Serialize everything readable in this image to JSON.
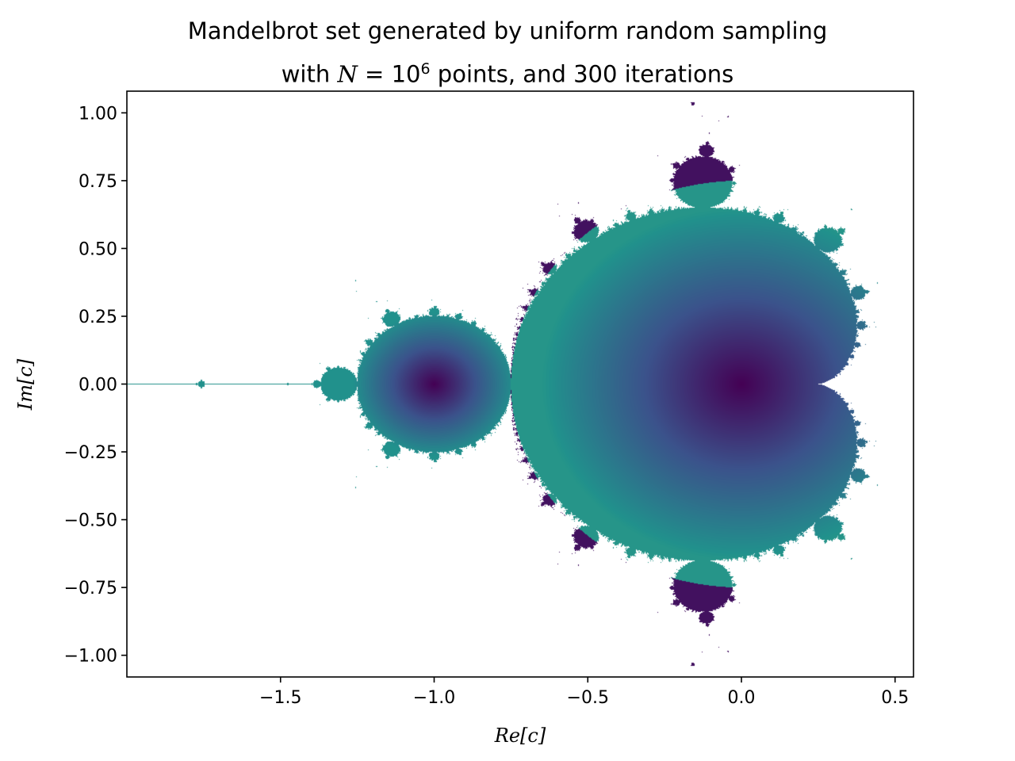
{
  "chart_data": {
    "type": "scatter",
    "title_line1": "Mandelbrot set generated by uniform random sampling",
    "title_line2_prefix": "with ",
    "title_line2_var": "N",
    "title_line2_eq": " = 10",
    "title_line2_exp": "6",
    "title_line2_suffix": " points, and 300 iterations",
    "xlabel": "Re[c]",
    "ylabel": "Im[c]",
    "xlim": [
      -2.0,
      0.56
    ],
    "ylim": [
      -1.08,
      1.08
    ],
    "xticks": [
      -1.5,
      -1.0,
      -0.5,
      0.0,
      0.5
    ],
    "xtick_labels": [
      "−1.5",
      "−1.0",
      "−0.5",
      "0.0",
      "0.5"
    ],
    "yticks": [
      1.0,
      0.75,
      0.5,
      0.25,
      0.0,
      -0.25,
      -0.5,
      -0.75,
      -1.0
    ],
    "ytick_labels": [
      "1.00",
      "0.75",
      "0.50",
      "0.25",
      "0.00",
      "−0.25",
      "−0.50",
      "−0.75",
      "−1.00"
    ],
    "grid": false,
    "legend": "none",
    "points": 1000000,
    "iterations": 300,
    "colormap": "viridis",
    "colormap_stops": [
      "#440154",
      "#3b528b",
      "#21918c",
      "#5ec962",
      "#fde725"
    ]
  }
}
